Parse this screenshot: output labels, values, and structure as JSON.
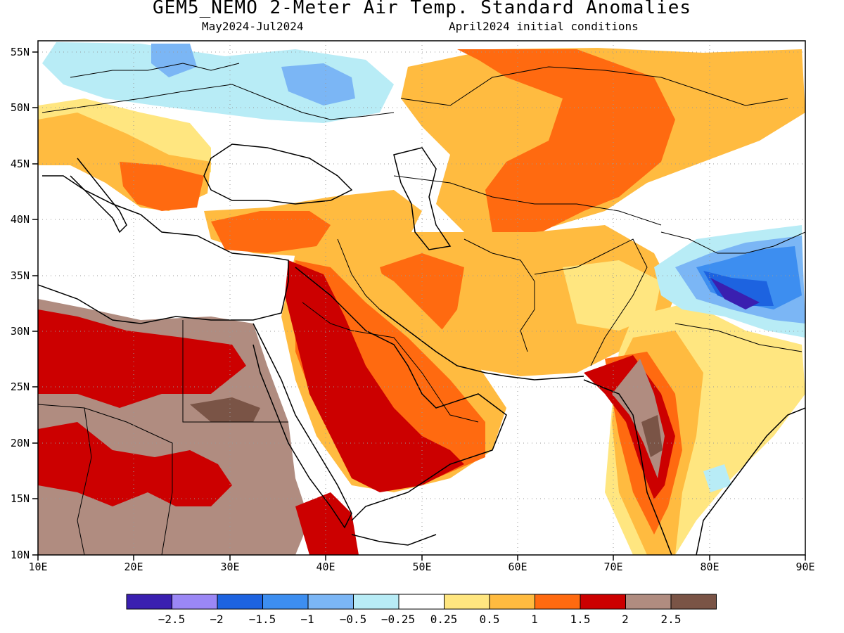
{
  "title": "GEM5_NEMO 2-Meter Air Temp. Standard Anomalies",
  "subtitle_left": "May2024-Jul2024",
  "subtitle_right": "April2024 initial conditions",
  "lat_labels": [
    "55N",
    "50N",
    "45N",
    "40N",
    "35N",
    "30N",
    "25N",
    "20N",
    "15N",
    "10N"
  ],
  "lon_labels": [
    "10E",
    "20E",
    "30E",
    "40E",
    "50E",
    "60E",
    "70E",
    "80E",
    "90E"
  ],
  "colorbar": {
    "colors": [
      "#3a1fb0",
      "#9b87f5",
      "#1d63e0",
      "#3d8ef0",
      "#7bb6f5",
      "#b8ecf6",
      "#ffffff",
      "#ffe680",
      "#ffbb40",
      "#ff6a10",
      "#cc0000",
      "#b08c80",
      "#7a5446"
    ],
    "labels": [
      "−2.5",
      "−2",
      "−1.5",
      "−1",
      "−0.5",
      "−0.25",
      "0.25",
      "0.5",
      "1",
      "1.5",
      "2",
      "2.5"
    ]
  },
  "colors": {
    "anomaly_brown_dark": "#7a5446",
    "anomaly_brown": "#b08c80",
    "anomaly_red": "#cc0000",
    "anomaly_orange": "#ff6a10",
    "anomaly_lightorange": "#ffbb40",
    "anomaly_yellow": "#ffe680",
    "anomaly_cyan": "#b8ecf6",
    "anomaly_lightblue": "#7bb6f5",
    "anomaly_blue": "#3d8ef0",
    "anomaly_darkblue": "#1d63e0",
    "anomaly_violet": "#9b87f5",
    "anomaly_indigo": "#3a1fb0"
  }
}
